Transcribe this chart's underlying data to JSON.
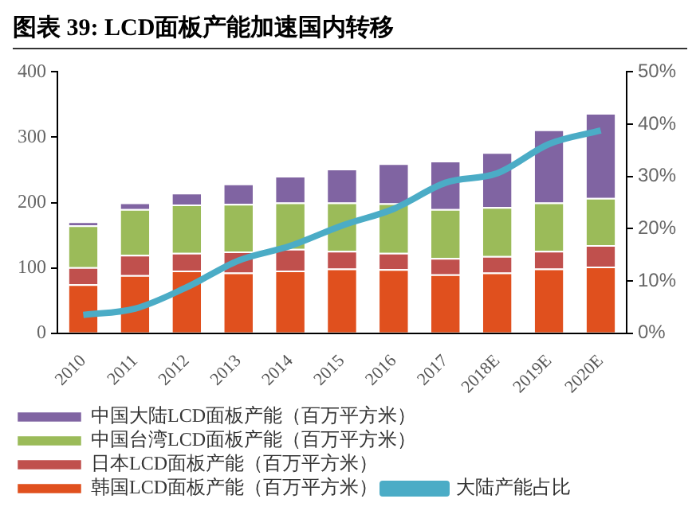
{
  "chart_data": {
    "type": "bar",
    "title": "图表 39:  LCD面板产能加速国内转移",
    "stacked": true,
    "legend": "bottom",
    "grid": false,
    "marker": "none",
    "categories": [
      "2010",
      "2011",
      "2012",
      "2013",
      "2014",
      "2015",
      "2016",
      "2017",
      "2018E",
      "2019E",
      "2020E"
    ],
    "ylim": [
      0,
      400
    ],
    "yticks": [
      0,
      100,
      200,
      300,
      400
    ],
    "y2lim": [
      0,
      50
    ],
    "y2ticks": [
      {
        "value": 0,
        "label": "0%"
      },
      {
        "value": 10,
        "label": "10%"
      },
      {
        "value": 20,
        "label": "20%"
      },
      {
        "value": 30,
        "label": "30%"
      },
      {
        "value": 40,
        "label": "40%"
      },
      {
        "value": 50,
        "label": "50%"
      }
    ],
    "series": [
      {
        "name": "韩国LCD面板产能（百万平方米）",
        "color": "#e0501e",
        "values": [
          75,
          89,
          96,
          93,
          96,
          99,
          98,
          90,
          93,
          99,
          102
        ]
      },
      {
        "name": "日本LCD面板产能（百万平方米）",
        "color": "#c0504d",
        "values": [
          26,
          31,
          27,
          32,
          33,
          27,
          25,
          25,
          25,
          27,
          33
        ]
      },
      {
        "name": "中国台湾LCD面板产能（百万平方米）",
        "color": "#9bbb59",
        "values": [
          64,
          70,
          74,
          73,
          71,
          74,
          76,
          75,
          75,
          74,
          72
        ]
      },
      {
        "name": "中国大陆LCD面板产能（百万平方米）",
        "color": "#8064a2",
        "values": [
          6,
          10,
          18,
          31,
          41,
          52,
          61,
          74,
          84,
          112,
          130
        ]
      },
      {
        "name": "大陆产能占比",
        "color": "#4bacc6",
        "type": "line",
        "axis": "y2",
        "values": [
          3.5,
          4.7,
          8.8,
          13.9,
          16.7,
          20.6,
          23.8,
          28.8,
          30.6,
          36.2,
          38.8
        ]
      }
    ]
  }
}
